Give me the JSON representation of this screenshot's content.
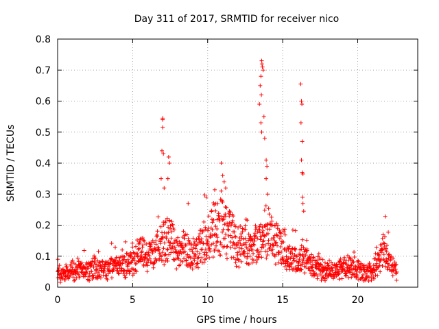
{
  "chart_data": {
    "type": "scatter",
    "title": "Day 311 of 2017, SRMTID for receiver nico",
    "xlabel": "GPS time / hours",
    "ylabel": "SRMTID / TECUs",
    "xlim": [
      0,
      24
    ],
    "ylim": [
      0,
      0.8
    ],
    "xticks": [
      0,
      5,
      10,
      15,
      20
    ],
    "xtick_labels": [
      "0",
      "5",
      "10",
      "15",
      "20"
    ],
    "yticks": [
      0,
      0.1,
      0.2,
      0.3,
      0.4,
      0.5,
      0.6,
      0.7,
      0.8
    ],
    "ytick_labels": [
      "0",
      "0.1",
      "0.2",
      "0.3",
      "0.4",
      "0.5",
      "0.6",
      "0.7",
      "0.8"
    ],
    "grid": true,
    "marker": "+",
    "color": "#ff0000",
    "series": [
      {
        "name": "SRMTID",
        "data_range_hours": [
          0,
          22.6
        ],
        "baseline_profile": [
          [
            0.0,
            0.04
          ],
          [
            1.0,
            0.05
          ],
          [
            2.0,
            0.06
          ],
          [
            3.0,
            0.06
          ],
          [
            4.0,
            0.07
          ],
          [
            5.0,
            0.07
          ],
          [
            5.5,
            0.12
          ],
          [
            6.0,
            0.1
          ],
          [
            6.5,
            0.12
          ],
          [
            7.0,
            0.14
          ],
          [
            7.5,
            0.16
          ],
          [
            8.0,
            0.11
          ],
          [
            8.5,
            0.12
          ],
          [
            9.0,
            0.1
          ],
          [
            9.5,
            0.13
          ],
          [
            10.0,
            0.16
          ],
          [
            10.5,
            0.18
          ],
          [
            11.0,
            0.2
          ],
          [
            11.5,
            0.17
          ],
          [
            12.0,
            0.13
          ],
          [
            12.5,
            0.14
          ],
          [
            13.0,
            0.12
          ],
          [
            13.5,
            0.17
          ],
          [
            14.0,
            0.16
          ],
          [
            14.5,
            0.15
          ],
          [
            15.0,
            0.13
          ],
          [
            15.5,
            0.09
          ],
          [
            16.0,
            0.08
          ],
          [
            16.5,
            0.09
          ],
          [
            17.0,
            0.07
          ],
          [
            17.5,
            0.06
          ],
          [
            18.0,
            0.05
          ],
          [
            19.0,
            0.06
          ],
          [
            20.0,
            0.06
          ],
          [
            20.5,
            0.05
          ],
          [
            21.0,
            0.05
          ],
          [
            21.5,
            0.1
          ],
          [
            21.8,
            0.14
          ],
          [
            22.0,
            0.08
          ],
          [
            22.6,
            0.06
          ]
        ],
        "spikes": [
          [
            7.0,
            0.545
          ],
          [
            7.0,
            0.54
          ],
          [
            7.0,
            0.515
          ],
          [
            6.95,
            0.44
          ],
          [
            7.05,
            0.43
          ],
          [
            6.9,
            0.35
          ],
          [
            7.1,
            0.32
          ],
          [
            7.4,
            0.42
          ],
          [
            7.45,
            0.4
          ],
          [
            7.35,
            0.35
          ],
          [
            8.7,
            0.27
          ],
          [
            9.9,
            0.29
          ],
          [
            11.0,
            0.36
          ],
          [
            11.1,
            0.34
          ],
          [
            11.2,
            0.32
          ],
          [
            10.9,
            0.31
          ],
          [
            13.45,
            0.59
          ],
          [
            13.5,
            0.65
          ],
          [
            13.55,
            0.68
          ],
          [
            13.6,
            0.73
          ],
          [
            13.62,
            0.72
          ],
          [
            13.65,
            0.71
          ],
          [
            13.7,
            0.7
          ],
          [
            13.58,
            0.62
          ],
          [
            13.75,
            0.55
          ],
          [
            13.55,
            0.53
          ],
          [
            13.6,
            0.5
          ],
          [
            13.8,
            0.48
          ],
          [
            13.9,
            0.41
          ],
          [
            13.95,
            0.39
          ],
          [
            13.9,
            0.35
          ],
          [
            14.0,
            0.3
          ],
          [
            16.2,
            0.655
          ],
          [
            16.25,
            0.6
          ],
          [
            16.28,
            0.59
          ],
          [
            16.22,
            0.53
          ],
          [
            16.3,
            0.47
          ],
          [
            16.25,
            0.41
          ],
          [
            16.3,
            0.37
          ],
          [
            16.35,
            0.365
          ],
          [
            16.32,
            0.29
          ],
          [
            16.35,
            0.27
          ],
          [
            16.4,
            0.245
          ]
        ]
      }
    ]
  }
}
